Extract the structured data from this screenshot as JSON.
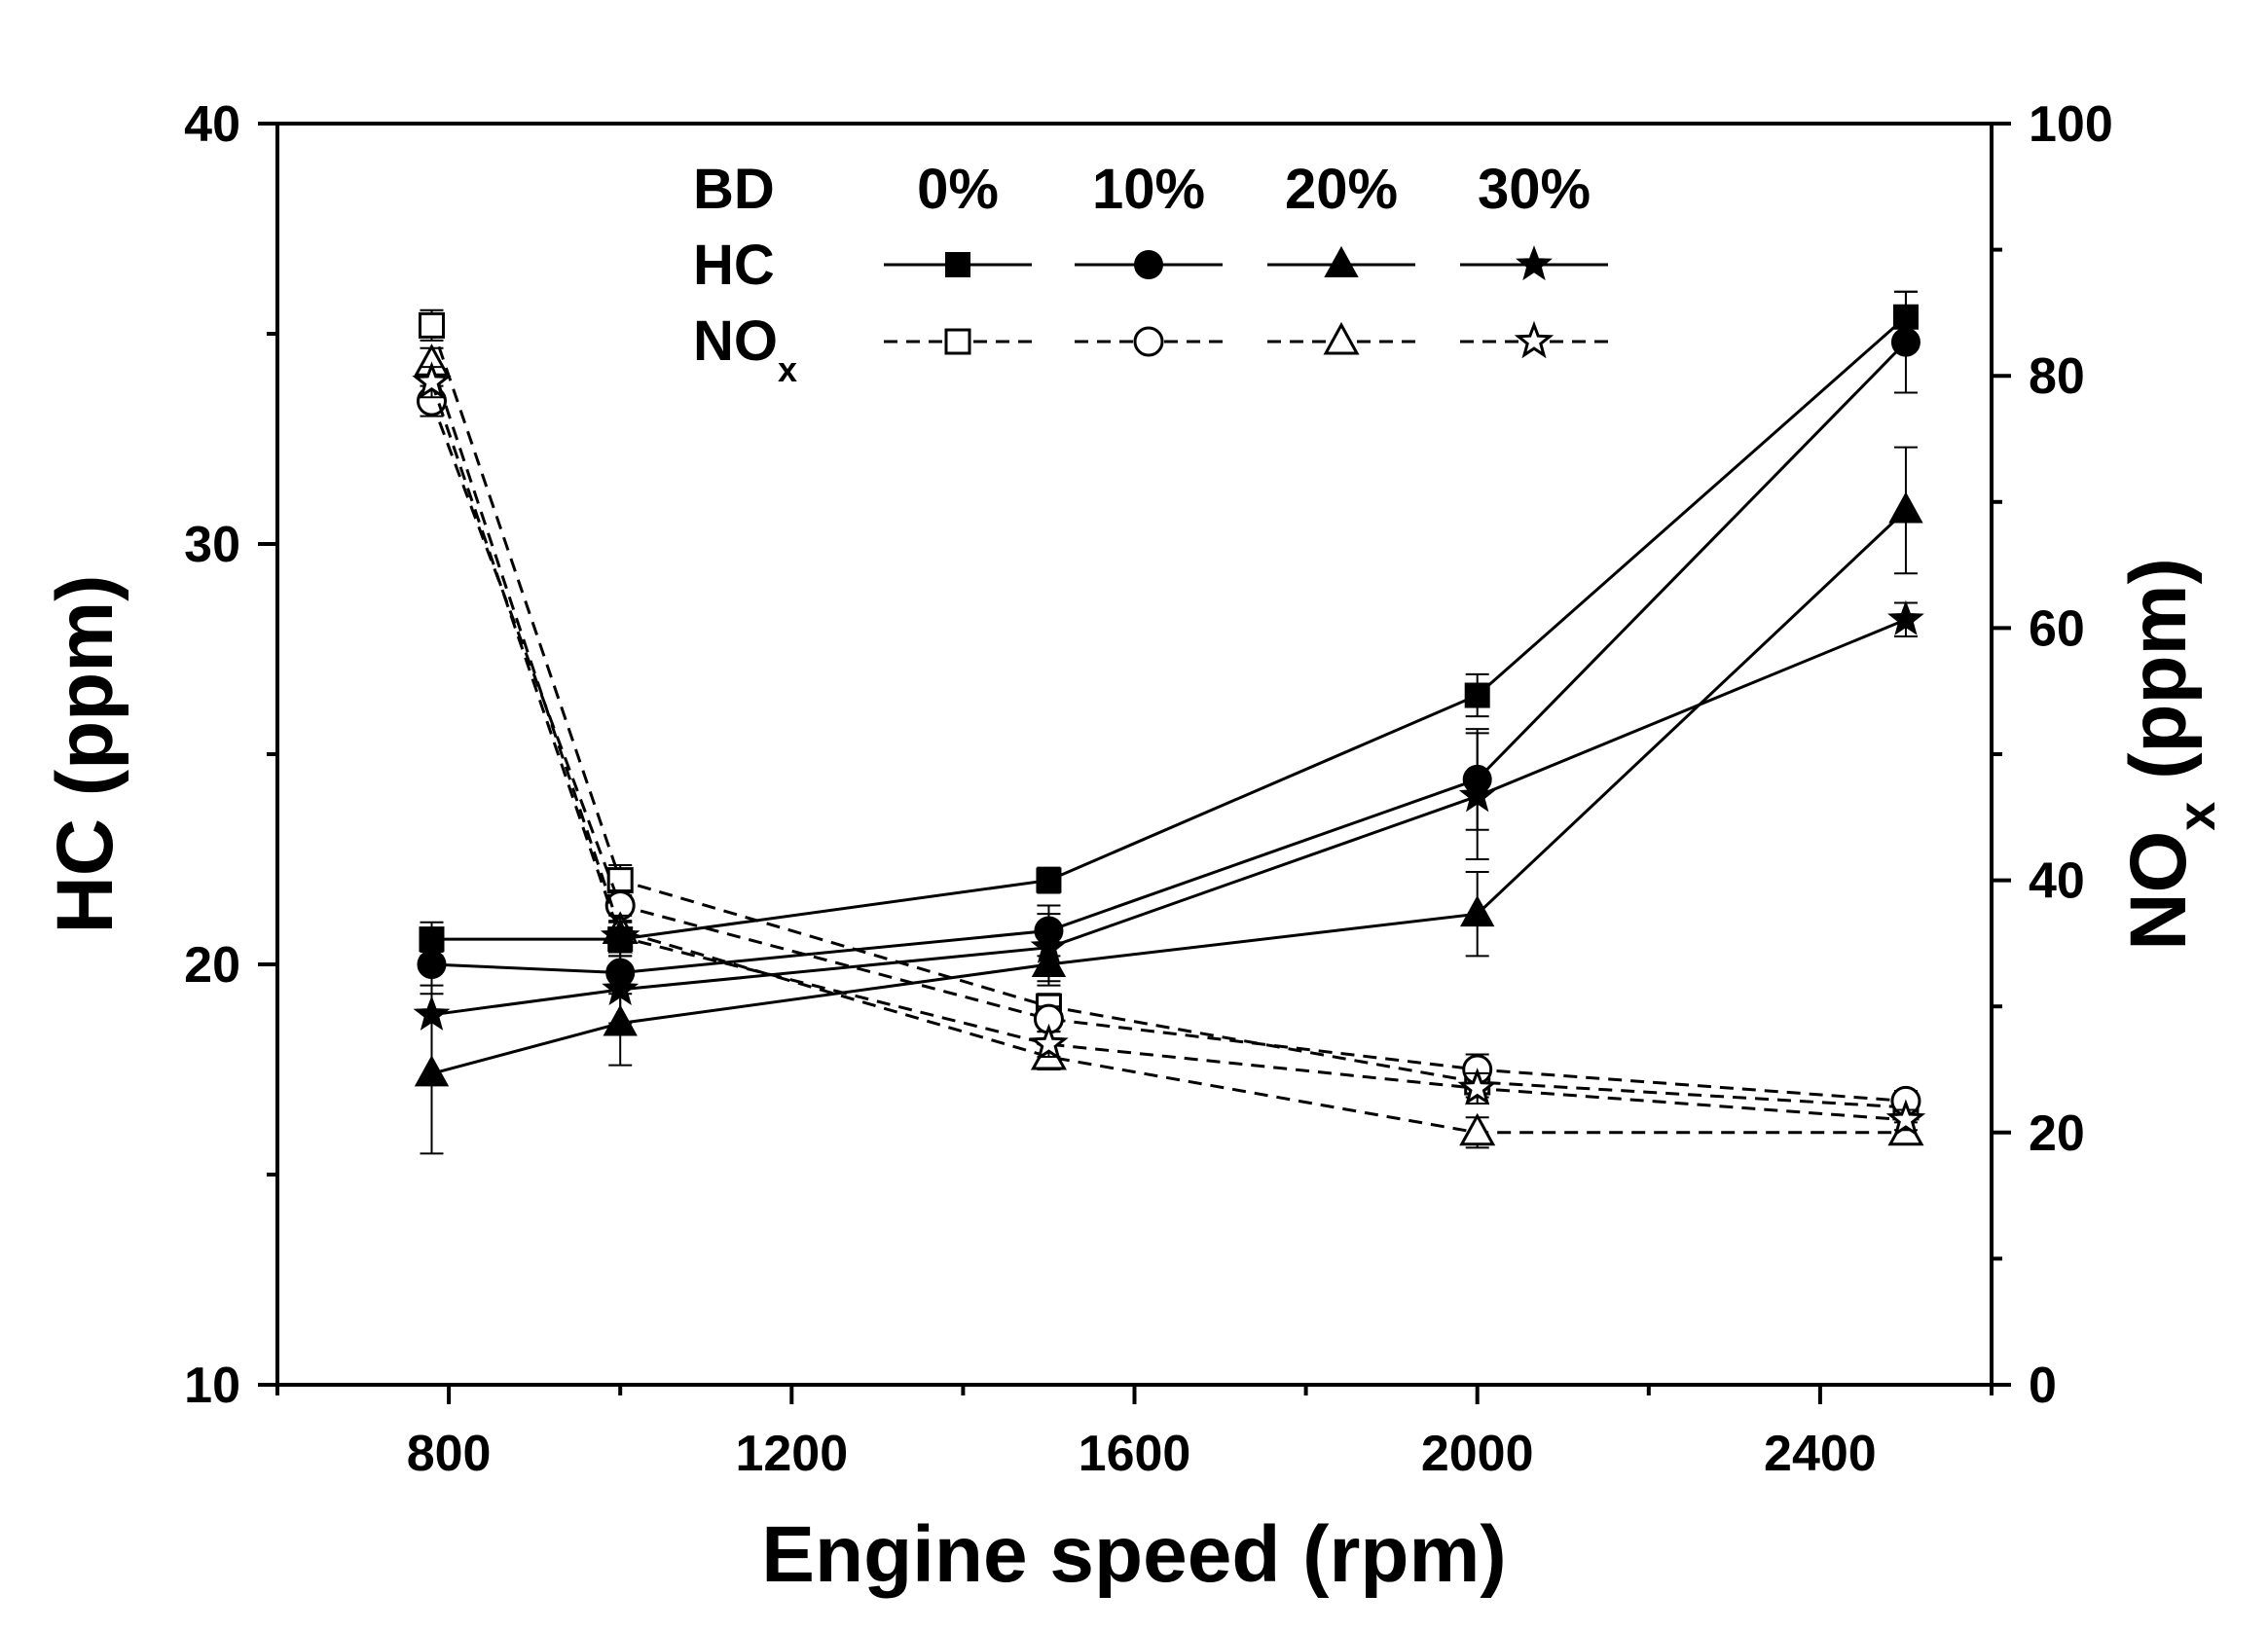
{
  "chart_data": {
    "type": "line",
    "xlabel": "Engine speed (rpm)",
    "ylabel_left": "HC (ppm)",
    "ylabel_right": {
      "main": "NO",
      "sub": "x",
      "unit": " (ppm)"
    },
    "xlim": [
      600,
      2600
    ],
    "x_ticks": [
      800,
      1200,
      1600,
      2000,
      2400
    ],
    "x_tick_labels": [
      "800",
      "1200",
      "1600",
      "2000",
      "2400"
    ],
    "ylim_left": [
      10,
      40
    ],
    "y_left_ticks": [
      10,
      20,
      30,
      40
    ],
    "y_left_tick_labels": [
      "10",
      "20",
      "30",
      "40"
    ],
    "ylim_right": [
      0,
      100
    ],
    "y_right_ticks": [
      0,
      20,
      40,
      60,
      80,
      100
    ],
    "y_right_tick_labels": [
      "0",
      "20",
      "40",
      "60",
      "80",
      "100"
    ],
    "x": [
      780,
      1000,
      1500,
      2000,
      2500
    ],
    "legend": {
      "header": "BD",
      "row_hc": "HC",
      "row_nox": {
        "main": "NO",
        "sub": "x"
      },
      "columns": [
        "0%",
        "10%",
        "20%",
        "30%"
      ],
      "position": "top-center"
    },
    "series": [
      {
        "name": "HC 0%",
        "group": "HC",
        "axis": "left",
        "marker": "square",
        "filled": true,
        "dashed": false,
        "values": [
          20.6,
          20.6,
          22.0,
          26.4,
          35.4
        ],
        "err": [
          0.4,
          0.4,
          0.3,
          0.5,
          0.6
        ]
      },
      {
        "name": "HC 10%",
        "group": "HC",
        "axis": "left",
        "marker": "circle",
        "filled": true,
        "dashed": false,
        "values": [
          20.0,
          19.8,
          20.8,
          24.4,
          34.8
        ],
        "err": [
          0.5,
          0.5,
          0.6,
          1.2,
          1.2
        ]
      },
      {
        "name": "HC 20%",
        "group": "HC",
        "axis": "left",
        "marker": "triangle",
        "filled": true,
        "dashed": false,
        "values": [
          17.4,
          18.6,
          20.0,
          21.2,
          30.8
        ],
        "err": [
          1.9,
          1.0,
          0.5,
          1.0,
          1.5
        ]
      },
      {
        "name": "HC 30%",
        "group": "HC",
        "axis": "left",
        "marker": "star",
        "filled": true,
        "dashed": false,
        "values": [
          18.8,
          19.4,
          20.4,
          24.0,
          28.2
        ],
        "err": [
          1.5,
          0.8,
          0.8,
          1.5,
          0.4
        ]
      },
      {
        "name": "NOx 0%",
        "group": "NOx",
        "axis": "right",
        "marker": "square",
        "filled": false,
        "dashed": true,
        "values": [
          84,
          40,
          30,
          24,
          22
        ],
        "err": [
          1.2,
          1.2,
          1.0,
          1.2,
          0.8
        ]
      },
      {
        "name": "NOx 10%",
        "group": "NOx",
        "axis": "right",
        "marker": "circle",
        "filled": false,
        "dashed": true,
        "values": [
          78,
          38,
          29,
          25,
          22.5
        ],
        "err": [
          1.2,
          1.2,
          1.0,
          1.2,
          0.8
        ]
      },
      {
        "name": "NOx 20%",
        "group": "NOx",
        "axis": "right",
        "marker": "triangle",
        "filled": false,
        "dashed": true,
        "values": [
          81,
          36,
          26,
          20,
          20
        ],
        "err": [
          1.2,
          1.2,
          1.0,
          1.2,
          0.8
        ]
      },
      {
        "name": "NOx 30%",
        "group": "NOx",
        "axis": "right",
        "marker": "star",
        "filled": false,
        "dashed": true,
        "values": [
          79.5,
          35.5,
          27,
          23.5,
          21
        ],
        "err": [
          1.2,
          1.2,
          1.0,
          1.2,
          0.8
        ]
      }
    ]
  }
}
